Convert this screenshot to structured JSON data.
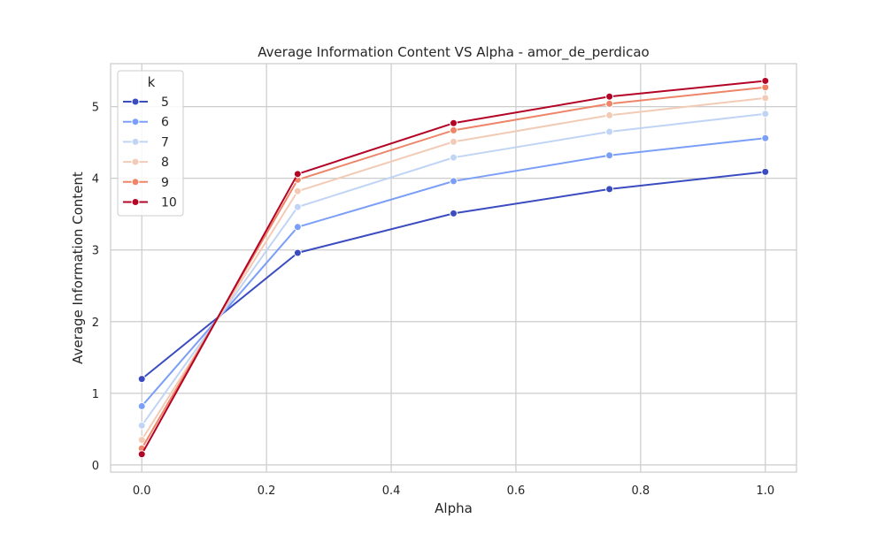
{
  "chart_data": {
    "type": "line",
    "title": "Average Information Content VS Alpha - amor_de_perdicao",
    "xlabel": "Alpha",
    "ylabel": "Average Information Content",
    "xlim": [
      -0.05,
      1.05
    ],
    "ylim": [
      -0.1,
      5.6
    ],
    "x_ticks": [
      0.0,
      0.2,
      0.4,
      0.6,
      0.8,
      1.0
    ],
    "x_tick_labels": [
      "0.0",
      "0.2",
      "0.4",
      "0.6",
      "0.8",
      "1.0"
    ],
    "y_ticks": [
      0,
      1,
      2,
      3,
      4,
      5
    ],
    "y_tick_labels": [
      "0",
      "1",
      "2",
      "3",
      "4",
      "5"
    ],
    "grid": true,
    "legend": {
      "title": "k",
      "placement": "top-left"
    },
    "x": [
      0.0,
      0.25,
      0.5,
      0.75,
      1.0
    ],
    "series": [
      {
        "name": "5",
        "color": "#3b4cc0",
        "values": [
          1.2,
          2.96,
          3.51,
          3.85,
          4.09
        ]
      },
      {
        "name": "6",
        "color": "#7b9ff9",
        "values": [
          0.82,
          3.32,
          3.96,
          4.32,
          4.56
        ]
      },
      {
        "name": "7",
        "color": "#c0d4f5",
        "values": [
          0.55,
          3.6,
          4.29,
          4.65,
          4.9
        ]
      },
      {
        "name": "8",
        "color": "#f2cbb7",
        "values": [
          0.35,
          3.82,
          4.51,
          4.88,
          5.12
        ]
      },
      {
        "name": "9",
        "color": "#ee8468",
        "values": [
          0.23,
          3.98,
          4.67,
          5.04,
          5.27
        ]
      },
      {
        "name": "10",
        "color": "#b40426",
        "values": [
          0.15,
          4.06,
          4.77,
          5.14,
          5.36
        ]
      }
    ]
  }
}
